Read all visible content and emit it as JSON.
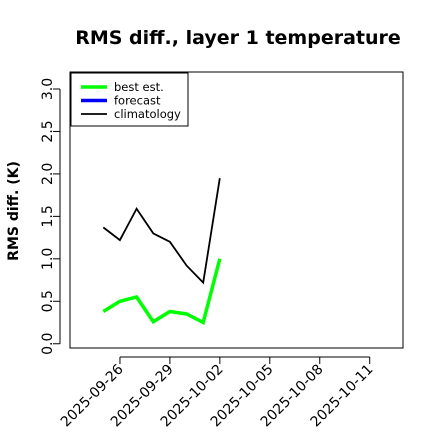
{
  "chart_data": {
    "type": "line",
    "title": "RMS diff., layer 1 temperature",
    "ylabel": "RMS diff. (K)",
    "xlabel": "",
    "ylim": [
      -0.05,
      3.2
    ],
    "xlim": [
      "2025-09-23",
      "2025-10-13"
    ],
    "y_ticks": [
      0.0,
      0.5,
      1.0,
      1.5,
      2.0,
      2.5,
      3.0
    ],
    "y_tick_labels": [
      "0.0",
      "0.5",
      "1.0",
      "1.5",
      "2.0",
      "2.5",
      "3.0"
    ],
    "x_ticks": [
      "2025-09-26",
      "2025-09-29",
      "2025-10-02",
      "2025-10-05",
      "2025-10-08",
      "2025-10-11"
    ],
    "x_tick_labels": [
      "2025-09-26",
      "2025-09-29",
      "2025-10-02",
      "2025-10-05",
      "2025-10-08",
      "2025-10-11"
    ],
    "highlighted_x_tick": "2025-10-02",
    "highlight_color": "#228B22",
    "legend_position": "top-left",
    "grid": false,
    "series": [
      {
        "name": "best est.",
        "color": "#00ff00",
        "x": [
          "2025-09-25",
          "2025-09-26",
          "2025-09-27",
          "2025-09-28",
          "2025-09-29",
          "2025-09-30",
          "2025-10-01",
          "2025-10-02"
        ],
        "values": [
          0.38,
          0.5,
          0.55,
          0.26,
          0.38,
          0.35,
          0.25,
          1.0
        ]
      },
      {
        "name": "forecast",
        "color": "#0000ff",
        "x": [],
        "values": []
      },
      {
        "name": "climatology",
        "color": "#000000",
        "x": [
          "2025-09-25",
          "2025-09-26",
          "2025-09-27",
          "2025-09-28",
          "2025-09-29",
          "2025-09-30",
          "2025-10-01",
          "2025-10-02"
        ],
        "values": [
          1.37,
          1.22,
          1.59,
          1.3,
          1.2,
          0.92,
          0.72,
          1.95
        ]
      }
    ]
  }
}
